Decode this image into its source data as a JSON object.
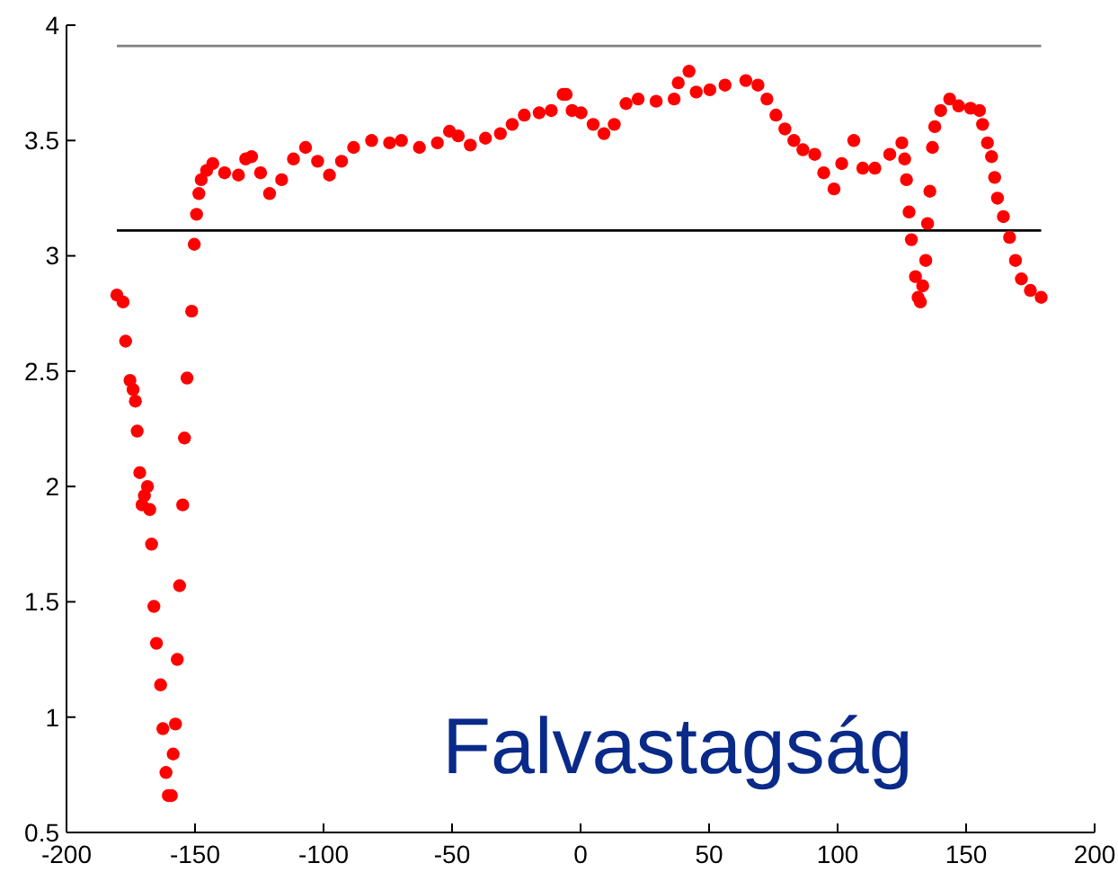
{
  "chart_data": {
    "type": "scatter",
    "marker": "circle",
    "grid": false,
    "xlim": [
      -200,
      200
    ],
    "xticks": [
      -200,
      -150,
      -100,
      -50,
      0,
      50,
      100,
      150,
      200
    ],
    "ylim": [
      0.5,
      4
    ],
    "yticks": [
      0.5,
      1,
      1.5,
      2,
      2.5,
      3,
      3.5,
      4
    ],
    "ref_lines": [
      {
        "axis": "y",
        "value": 3.91,
        "color": "#808080"
      },
      {
        "axis": "y",
        "value": 3.11,
        "color": "#000000"
      }
    ],
    "annotations": [
      {
        "text": "Falvastagság"
      }
    ],
    "series": [
      {
        "color": "#ff0000",
        "x": [
          -180.4,
          -178,
          -177,
          -175.3,
          -174.1,
          -173.2,
          -172.5,
          -171.5,
          -170.6,
          -169.7,
          -168.5,
          -167.6,
          -166.9,
          -166,
          -165,
          -163.4,
          -162.5,
          -161.3,
          -160.4,
          -159.2,
          -158.5,
          -157.6,
          -156.9,
          -156,
          -154.8,
          -154.1,
          -153.1,
          -151.3,
          -150.3,
          -149.4,
          -148.5,
          -147.6,
          -145.5,
          -143.1,
          -138.5,
          -133.1,
          -130.3,
          -128,
          -124.5,
          -121,
          -116.3,
          -111.7,
          -107,
          -102.3,
          -97.7,
          -93,
          -88.3,
          -81.3,
          -74.3,
          -69.7,
          -62.7,
          -55.7,
          -51,
          -47.6,
          -42.9,
          -37,
          -31.2,
          -26.6,
          -21.9,
          -16.1,
          -11.4,
          -6.8,
          -5.6,
          -3.3,
          0.2,
          4.9,
          9.1,
          13.1,
          17.7,
          22.4,
          29.4,
          36.4,
          38,
          42.2,
          45,
          50.3,
          56.2,
          64.3,
          69,
          72.5,
          76,
          79.5,
          83,
          86.5,
          91.1,
          94.6,
          98.6,
          101.6,
          106.3,
          109.8,
          114.5,
          120.3,
          125,
          126.1,
          126.8,
          127.8,
          128.7,
          130.3,
          131.3,
          132.2,
          133.1,
          134.3,
          135,
          135.9,
          136.9,
          137.8,
          140.1,
          143.6,
          147.1,
          151.7,
          155.2,
          156.4,
          158.3,
          159.9,
          161.1,
          162.2,
          164.5,
          166.9,
          169.2,
          171.5,
          175,
          179.2
        ],
        "values": [
          2.83,
          2.8,
          2.63,
          2.46,
          2.42,
          2.37,
          2.24,
          2.06,
          1.92,
          1.96,
          2,
          1.9,
          1.75,
          1.48,
          1.32,
          1.14,
          0.95,
          0.76,
          0.66,
          0.66,
          0.84,
          0.97,
          1.25,
          1.57,
          1.92,
          2.21,
          2.47,
          2.76,
          3.05,
          3.18,
          3.27,
          3.33,
          3.37,
          3.4,
          3.36,
          3.35,
          3.42,
          3.43,
          3.36,
          3.27,
          3.33,
          3.42,
          3.47,
          3.41,
          3.35,
          3.41,
          3.47,
          3.5,
          3.49,
          3.5,
          3.47,
          3.49,
          3.54,
          3.52,
          3.48,
          3.51,
          3.53,
          3.57,
          3.61,
          3.62,
          3.63,
          3.7,
          3.7,
          3.63,
          3.62,
          3.57,
          3.53,
          3.57,
          3.66,
          3.68,
          3.67,
          3.68,
          3.75,
          3.8,
          3.71,
          3.72,
          3.74,
          3.76,
          3.74,
          3.68,
          3.61,
          3.55,
          3.5,
          3.46,
          3.44,
          3.36,
          3.29,
          3.4,
          3.5,
          3.38,
          3.38,
          3.44,
          3.49,
          3.42,
          3.33,
          3.19,
          3.07,
          2.91,
          2.82,
          2.8,
          2.87,
          2.98,
          3.14,
          3.28,
          3.47,
          3.56,
          3.63,
          3.68,
          3.65,
          3.64,
          3.63,
          3.57,
          3.49,
          3.43,
          3.34,
          3.25,
          3.17,
          3.08,
          2.98,
          2.9,
          2.85,
          2.82
        ]
      }
    ]
  }
}
